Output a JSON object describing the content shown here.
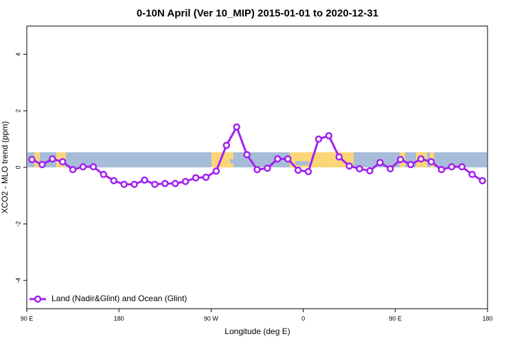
{
  "chart_data": {
    "type": "line",
    "title": "0-10N April (Ver 10_MIP)   2015-01-01 to 2020-12-31",
    "x_label": "Longitude (deg E)",
    "y_label": "XCO2 - MLO trend (ppm)",
    "x": [
      95,
      105,
      115,
      125,
      135,
      145,
      155,
      165,
      175,
      185,
      195,
      205,
      215,
      225,
      235,
      245,
      255,
      265,
      275,
      285,
      295,
      305,
      315,
      325,
      335,
      345,
      355,
      365,
      375,
      385,
      395,
      405,
      415,
      425,
      435,
      445,
      455,
      465,
      475,
      485,
      495,
      505,
      515,
      525,
      535
    ],
    "series": [
      {
        "name": "Land (Nadir&Glint) and Ocean (Glint)",
        "color": "#a020f0",
        "values": [
          0.28,
          0.1,
          0.3,
          0.2,
          -0.08,
          0.02,
          0.02,
          -0.25,
          -0.47,
          -0.6,
          -0.6,
          -0.45,
          -0.6,
          -0.57,
          -0.57,
          -0.5,
          -0.37,
          -0.35,
          -0.13,
          0.78,
          1.43,
          0.45,
          -0.08,
          -0.03,
          0.3,
          0.3,
          -0.1,
          -0.15,
          1.0,
          1.12,
          0.37,
          0.05,
          -0.05,
          -0.12,
          0.17,
          -0.05,
          0.28,
          0.1,
          0.3,
          0.2,
          -0.08,
          0.02,
          0.02,
          -0.25,
          -0.47
        ]
      }
    ],
    "xlim": [
      90,
      540
    ],
    "xticks": [
      {
        "value": 90,
        "label": "90 E"
      },
      180,
      {
        "value": 270,
        "label": "90 W"
      },
      {
        "value": 360,
        "label": "0"
      },
      {
        "value": 450,
        "label": "90 E"
      },
      {
        "value": 540,
        "label": "180"
      }
    ],
    "ylim": [
      -5,
      5
    ],
    "yticks": [
      -4,
      -2,
      0,
      2,
      4
    ],
    "legend": "bottom-left"
  }
}
